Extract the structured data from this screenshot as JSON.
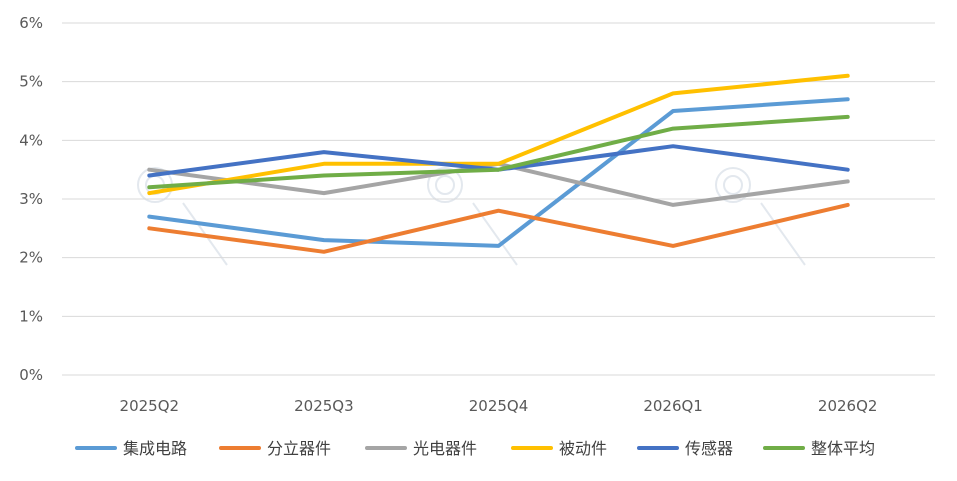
{
  "chart_data": {
    "type": "line",
    "categories": [
      "2025Q2",
      "2025Q3",
      "2025Q4",
      "2026Q1",
      "2026Q2"
    ],
    "y_ticks": [
      "0%",
      "1%",
      "2%",
      "3%",
      "4%",
      "5%",
      "6%"
    ],
    "ylim": [
      0,
      6
    ],
    "grid": true,
    "legend_position": "bottom",
    "series": [
      {
        "name": "集成电路",
        "color": "#5b9bd5",
        "values": [
          2.7,
          2.3,
          2.2,
          4.5,
          4.7
        ]
      },
      {
        "name": "分立器件",
        "color": "#ed7d31",
        "values": [
          2.5,
          2.1,
          2.8,
          2.2,
          2.9
        ]
      },
      {
        "name": "光电器件",
        "color": "#a5a5a5",
        "values": [
          3.5,
          3.1,
          3.6,
          2.9,
          3.3
        ]
      },
      {
        "name": "被动件",
        "color": "#ffc000",
        "values": [
          3.1,
          3.6,
          3.6,
          4.8,
          5.1
        ]
      },
      {
        "name": "传感器",
        "color": "#4472c4",
        "values": [
          3.4,
          3.8,
          3.5,
          3.9,
          3.5
        ]
      },
      {
        "name": "整体平均",
        "color": "#70ad47",
        "values": [
          3.2,
          3.4,
          3.5,
          4.2,
          4.4
        ]
      }
    ]
  }
}
